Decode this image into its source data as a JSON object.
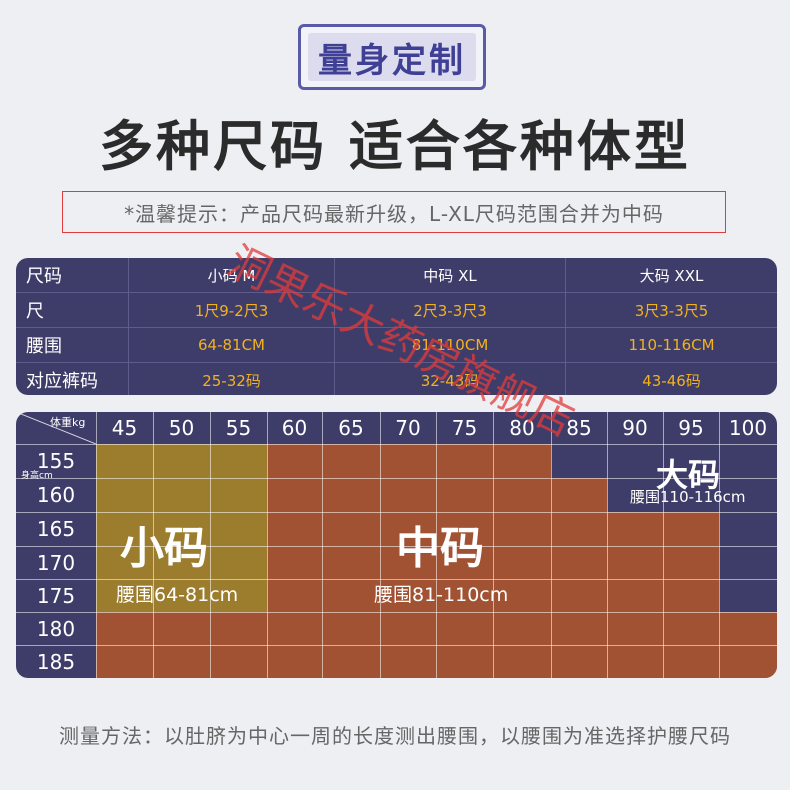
{
  "badge": "量身定制",
  "headline": "多种尺码 适合各种体型",
  "tip": "*温馨提示：产品尺码最新升级，L-XL尺码范围合并为中码",
  "size_table": {
    "headers": [
      "尺码",
      "小码 M",
      "中码 XL",
      "大码 XXL"
    ],
    "rows": [
      {
        "label": "尺",
        "values": [
          "1尺9-2尺3",
          "2尺3-3尺3",
          "3尺3-3尺5"
        ]
      },
      {
        "label": "腰围",
        "values": [
          "64-81CM",
          "81-110CM",
          "110-116CM"
        ]
      },
      {
        "label": "对应裤码",
        "values": [
          "25-32码",
          "32-43码",
          "43-46码"
        ]
      }
    ]
  },
  "grid": {
    "weight_label": "体重kg",
    "height_label": "身高cm",
    "weights": [
      "45",
      "50",
      "55",
      "60",
      "65",
      "70",
      "75",
      "80",
      "85",
      "90",
      "95",
      "100"
    ],
    "heights": [
      "155",
      "160",
      "165",
      "170",
      "175",
      "180",
      "185"
    ],
    "zones": {
      "small": {
        "title": "小码",
        "waist": "腰围64-81cm",
        "color": "#9c7d2e"
      },
      "medium": {
        "title": "中码",
        "waist": "腰围81-110cm",
        "color": "#a15233"
      },
      "large": {
        "title": "大码",
        "waist": "腰围110-116cm",
        "color": "#3e3c68"
      }
    }
  },
  "footer": "测量方法：以肚脐为中心一周的长度测出腰围，以腰围为准选择护腰尺码",
  "watermark": "洞果乐大药房旗舰店"
}
